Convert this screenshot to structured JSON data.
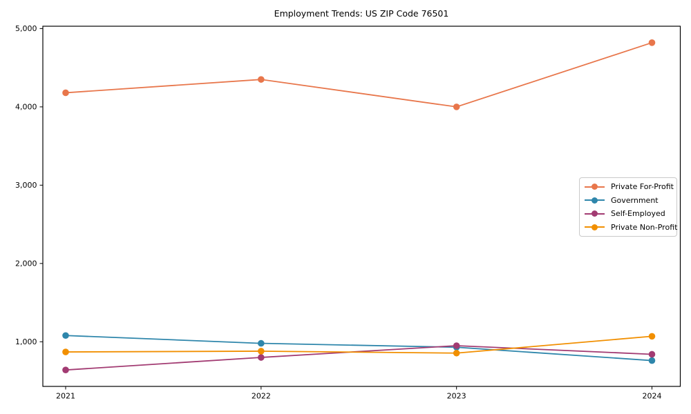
{
  "figure": {
    "title": "Employment Trends: US ZIP Code 76501",
    "background": "#ffffff",
    "axis_color": "#000000"
  },
  "chart_data": {
    "type": "line",
    "title": "Employment Trends: US ZIP Code 76501",
    "xlabel": "",
    "ylabel": "",
    "categories": [
      "2021",
      "2022",
      "2023",
      "2024"
    ],
    "series": [
      {
        "name": "Private For-Profit",
        "color": "#E8764B",
        "values": [
          4180,
          4350,
          4000,
          4820
        ]
      },
      {
        "name": "Government",
        "color": "#2E86AB",
        "values": [
          1080,
          980,
          930,
          760
        ]
      },
      {
        "name": "Self-Employed",
        "color": "#A23B72",
        "values": [
          640,
          800,
          950,
          840
        ]
      },
      {
        "name": "Private Non-Profit",
        "color": "#F18F01",
        "values": [
          870,
          880,
          855,
          1070
        ]
      }
    ],
    "ylim": [
      430,
      5030
    ],
    "yticks": [
      1000,
      2000,
      3000,
      4000,
      5000
    ],
    "ytick_labels": [
      "1,000",
      "2,000",
      "3,000",
      "4,000",
      "5,000"
    ],
    "grid": false,
    "legend_position": "center right",
    "marker": "circle"
  }
}
